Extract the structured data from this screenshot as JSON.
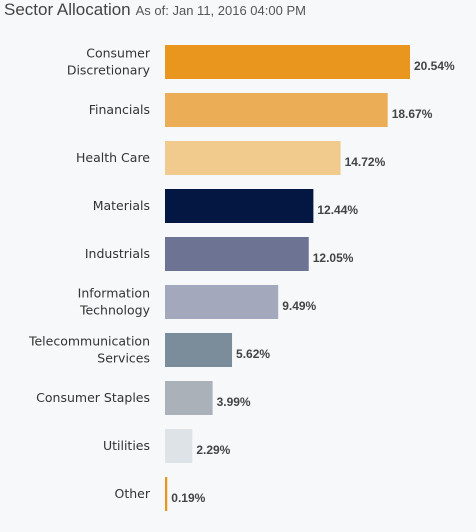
{
  "header": {
    "title": "Sector Allocation",
    "as_of": "As of: Jan 11, 2016 04:00 PM"
  },
  "chart_data": {
    "type": "bar",
    "orientation": "horizontal",
    "title": "Sector Allocation",
    "subtitle": "As of: Jan 11, 2016 04:00 PM",
    "categories": [
      "Consumer Discretionary",
      "Financials",
      "Health Care",
      "Materials",
      "Industrials",
      "Information Technology",
      "Telecommunication Services",
      "Consumer Staples",
      "Utilities",
      "Other"
    ],
    "category_lines": [
      [
        "Consumer",
        "Discretionary"
      ],
      [
        "Financials"
      ],
      [
        "Health Care"
      ],
      [
        "Materials"
      ],
      [
        "Industrials"
      ],
      [
        "Information",
        "Technology"
      ],
      [
        "Telecommunication",
        "Services"
      ],
      [
        "Consumer Staples"
      ],
      [
        "Utilities"
      ],
      [
        "Other"
      ]
    ],
    "values": [
      20.54,
      18.67,
      14.72,
      12.44,
      12.05,
      9.49,
      5.62,
      3.99,
      2.29,
      0.19
    ],
    "value_labels": [
      "20.54%",
      "18.67%",
      "14.72%",
      "12.44%",
      "12.05%",
      "9.49%",
      "5.62%",
      "3.99%",
      "2.29%",
      "0.19%"
    ],
    "colors": [
      "#e8961e",
      "#ebad55",
      "#f0cb8d",
      "#041642",
      "#6d7493",
      "#a4a8bd",
      "#7b8c9a",
      "#aab1b8",
      "#dde3e6",
      "#e8961e"
    ],
    "xlim": [
      0,
      20.54
    ],
    "grid": false,
    "legend": "none"
  }
}
